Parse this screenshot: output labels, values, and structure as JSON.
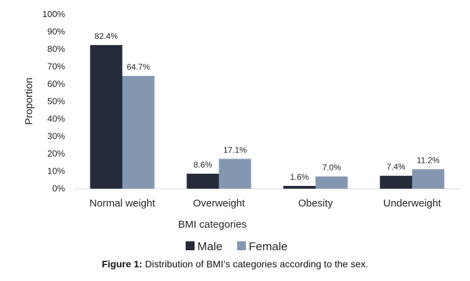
{
  "chart_data": {
    "type": "bar",
    "categories": [
      "Normal weight",
      "Overweight",
      "Obesity",
      "Underweight"
    ],
    "series": [
      {
        "name": "Male",
        "color": "#252b38",
        "values": [
          82.4,
          8.6,
          1.6,
          7.4
        ],
        "labels": [
          "82.4%",
          "8.6%",
          "1.6%",
          "7.4%"
        ]
      },
      {
        "name": "Female",
        "color": "#8497b0",
        "values": [
          64.7,
          17.1,
          7.0,
          11.2
        ],
        "labels": [
          "64.7%",
          "17.1%",
          "7.0%",
          "11.2%"
        ]
      }
    ],
    "xlabel": "BMI categories",
    "ylabel": "Proportion",
    "ylim": [
      0,
      100
    ],
    "yticks": [
      "0%",
      "10%",
      "20%",
      "30%",
      "40%",
      "50%",
      "60%",
      "70%",
      "80%",
      "90%",
      "100%"
    ],
    "grid": false,
    "legend": "bottom"
  },
  "caption": {
    "label": "Figure 1:",
    "text": " Distribution of BMI’s categories according to the sex."
  }
}
